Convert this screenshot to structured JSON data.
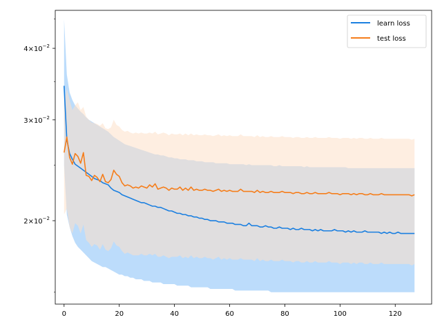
{
  "chart_data": {
    "type": "line",
    "title": "",
    "xlabel": "",
    "ylabel": "",
    "yscale": "log",
    "xlim": [
      -3.2,
      133.2
    ],
    "ylim": [
      0.0143,
      0.0466
    ],
    "grid": false,
    "legend_position": "top-right",
    "x_ticks": [
      0,
      20,
      40,
      60,
      80,
      100,
      120
    ],
    "x_tick_labels": [
      "0",
      "20",
      "40",
      "60",
      "80",
      "100",
      "120"
    ],
    "y_ticks": [
      0.02,
      0.03,
      0.04
    ],
    "y_tick_labels": [
      {
        "base": "2",
        "exp": "−2"
      },
      {
        "base": "3",
        "exp": "−2"
      },
      {
        "base": "4",
        "exp": "−2"
      }
    ],
    "series": [
      {
        "name": "learn loss",
        "color": "#1f77b4",
        "line_color": "#1a7fe0",
        "band_color": "#bcdcfb",
        "x_step": 1,
        "x_start": 0,
        "values": [
          0.0344,
          0.0277,
          0.0262,
          0.0256,
          0.0251,
          0.0249,
          0.0247,
          0.0245,
          0.0243,
          0.0241,
          0.0239,
          0.0237,
          0.0236,
          0.0235,
          0.0233,
          0.0232,
          0.0231,
          0.0228,
          0.0226,
          0.0225,
          0.0224,
          0.0222,
          0.0221,
          0.022,
          0.0219,
          0.0218,
          0.0217,
          0.0216,
          0.0215,
          0.0215,
          0.0214,
          0.0213,
          0.0212,
          0.0212,
          0.0211,
          0.0211,
          0.021,
          0.0209,
          0.0208,
          0.0208,
          0.0207,
          0.0206,
          0.0206,
          0.0205,
          0.0205,
          0.0204,
          0.0204,
          0.0203,
          0.0203,
          0.0202,
          0.0202,
          0.0201,
          0.0201,
          0.02,
          0.02,
          0.02,
          0.0199,
          0.0199,
          0.0199,
          0.0198,
          0.0198,
          0.0198,
          0.0197,
          0.0197,
          0.0197,
          0.0196,
          0.0196,
          0.0198,
          0.0196,
          0.0196,
          0.0196,
          0.0195,
          0.0195,
          0.0196,
          0.0195,
          0.0195,
          0.0194,
          0.0194,
          0.0195,
          0.0194,
          0.0194,
          0.0194,
          0.0193,
          0.0194,
          0.0193,
          0.0193,
          0.0194,
          0.0193,
          0.0193,
          0.0193,
          0.0192,
          0.0193,
          0.0192,
          0.0193,
          0.0192,
          0.0192,
          0.0192,
          0.0192,
          0.0193,
          0.0192,
          0.0192,
          0.0192,
          0.0191,
          0.0192,
          0.0191,
          0.0192,
          0.0191,
          0.0191,
          0.0191,
          0.0192,
          0.0191,
          0.0191,
          0.0191,
          0.0191,
          0.0191,
          0.019,
          0.0191,
          0.019,
          0.0191,
          0.019,
          0.019,
          0.0191,
          0.019,
          0.019,
          0.019,
          0.019,
          0.019,
          0.019
        ],
        "upper": [
          0.045,
          0.036,
          0.0335,
          0.0325,
          0.0318,
          0.0314,
          0.031,
          0.0307,
          0.0303,
          0.03,
          0.0298,
          0.0296,
          0.0294,
          0.0292,
          0.029,
          0.0288,
          0.0286,
          0.0283,
          0.028,
          0.0278,
          0.0276,
          0.0274,
          0.0272,
          0.0271,
          0.027,
          0.0269,
          0.0268,
          0.0267,
          0.0266,
          0.0265,
          0.0264,
          0.0263,
          0.0262,
          0.0261,
          0.0261,
          0.026,
          0.026,
          0.0259,
          0.0258,
          0.0258,
          0.0257,
          0.0257,
          0.0256,
          0.0256,
          0.0256,
          0.0255,
          0.0255,
          0.0255,
          0.0254,
          0.0254,
          0.0254,
          0.0253,
          0.0253,
          0.0253,
          0.0253,
          0.0252,
          0.0252,
          0.0252,
          0.0252,
          0.0252,
          0.0251,
          0.0251,
          0.0251,
          0.0251,
          0.0251,
          0.0251,
          0.025,
          0.0251,
          0.025,
          0.025,
          0.025,
          0.025,
          0.025,
          0.025,
          0.025,
          0.025,
          0.0249,
          0.0249,
          0.025,
          0.0249,
          0.0249,
          0.0249,
          0.0249,
          0.0249,
          0.0249,
          0.0249,
          0.0249,
          0.0248,
          0.0249,
          0.0248,
          0.0248,
          0.0248,
          0.0248,
          0.0248,
          0.0248,
          0.0248,
          0.0248,
          0.0248,
          0.0248,
          0.0248,
          0.0248,
          0.0248,
          0.0248,
          0.0247,
          0.0247,
          0.0247,
          0.0247,
          0.0247,
          0.0247,
          0.0247,
          0.0247,
          0.0247,
          0.0247,
          0.0247,
          0.0247,
          0.0247,
          0.0247,
          0.0247,
          0.0247,
          0.0247,
          0.0247,
          0.0247,
          0.0247,
          0.0247,
          0.0247,
          0.0247,
          0.0247,
          0.0247
        ],
        "lower": [
          0.025,
          0.0205,
          0.0195,
          0.0188,
          0.0183,
          0.018,
          0.0178,
          0.0176,
          0.0174,
          0.0172,
          0.017,
          0.0169,
          0.0168,
          0.0167,
          0.0166,
          0.0166,
          0.0165,
          0.0164,
          0.0163,
          0.0162,
          0.0161,
          0.0161,
          0.016,
          0.016,
          0.0159,
          0.0159,
          0.0158,
          0.0158,
          0.0158,
          0.0157,
          0.0157,
          0.0157,
          0.0156,
          0.0156,
          0.0156,
          0.0156,
          0.0155,
          0.0155,
          0.0155,
          0.0155,
          0.0155,
          0.0154,
          0.0154,
          0.0154,
          0.0154,
          0.0154,
          0.0153,
          0.0153,
          0.0153,
          0.0153,
          0.0153,
          0.0153,
          0.0153,
          0.0152,
          0.0152,
          0.0152,
          0.0152,
          0.0152,
          0.0152,
          0.0152,
          0.0152,
          0.0152,
          0.0151,
          0.0151,
          0.0151,
          0.0151,
          0.0151,
          0.0151,
          0.0151,
          0.0151,
          0.0151,
          0.0151,
          0.0151,
          0.0151,
          0.0151,
          0.015,
          0.015,
          0.015,
          0.015,
          0.015,
          0.015,
          0.015,
          0.015,
          0.015,
          0.015,
          0.015,
          0.015,
          0.015,
          0.015,
          0.015,
          0.015,
          0.015,
          0.015,
          0.015,
          0.015,
          0.015,
          0.015,
          0.015,
          0.015,
          0.015,
          0.015,
          0.015,
          0.015,
          0.015,
          0.015,
          0.015,
          0.015,
          0.015,
          0.015,
          0.015,
          0.015,
          0.015,
          0.015,
          0.015,
          0.015,
          0.015,
          0.015,
          0.015,
          0.015,
          0.015,
          0.015,
          0.015,
          0.015,
          0.015,
          0.015,
          0.015,
          0.015,
          0.015
        ]
      },
      {
        "name": "test loss",
        "color": "#ff7f0e",
        "line_color": "#f57d1a",
        "band_color": "#fde0c8",
        "x_step": 1,
        "x_start": 0,
        "values": [
          0.0263,
          0.028,
          0.0258,
          0.0251,
          0.0262,
          0.0259,
          0.0252,
          0.0263,
          0.024,
          0.0239,
          0.0235,
          0.024,
          0.0238,
          0.0234,
          0.0241,
          0.0234,
          0.0233,
          0.0236,
          0.0245,
          0.0241,
          0.0239,
          0.0233,
          0.023,
          0.0231,
          0.023,
          0.0228,
          0.0229,
          0.0228,
          0.023,
          0.0229,
          0.0228,
          0.0231,
          0.0229,
          0.0232,
          0.0227,
          0.0228,
          0.0229,
          0.0228,
          0.0226,
          0.0228,
          0.0227,
          0.0227,
          0.0229,
          0.0226,
          0.0228,
          0.0226,
          0.0229,
          0.0226,
          0.0227,
          0.0226,
          0.0226,
          0.0227,
          0.0226,
          0.0226,
          0.0225,
          0.0226,
          0.0227,
          0.0225,
          0.0226,
          0.0225,
          0.0226,
          0.0225,
          0.0225,
          0.0225,
          0.0227,
          0.0225,
          0.0225,
          0.0225,
          0.0225,
          0.0224,
          0.0226,
          0.0224,
          0.0225,
          0.0224,
          0.0224,
          0.0225,
          0.0224,
          0.0224,
          0.0224,
          0.0225,
          0.0224,
          0.0224,
          0.0224,
          0.0223,
          0.0224,
          0.0224,
          0.0223,
          0.0223,
          0.0224,
          0.0223,
          0.0223,
          0.0224,
          0.0223,
          0.0223,
          0.0223,
          0.0223,
          0.0224,
          0.0223,
          0.0223,
          0.0223,
          0.0222,
          0.0223,
          0.0223,
          0.0223,
          0.0222,
          0.0223,
          0.0222,
          0.0223,
          0.0223,
          0.0222,
          0.0222,
          0.0223,
          0.0222,
          0.0222,
          0.0222,
          0.0223,
          0.0222,
          0.0222,
          0.0222,
          0.0222,
          0.0222,
          0.0222,
          0.0222,
          0.0222,
          0.0222,
          0.0222,
          0.0221,
          0.0222
        ],
        "upper": [
          0.032,
          0.034,
          0.0325,
          0.0312,
          0.0318,
          0.0322,
          0.0312,
          0.0316,
          0.0304,
          0.03,
          0.0297,
          0.0296,
          0.0295,
          0.0293,
          0.0296,
          0.029,
          0.0289,
          0.0291,
          0.03,
          0.0294,
          0.0292,
          0.0288,
          0.0286,
          0.0287,
          0.0285,
          0.0284,
          0.0285,
          0.0284,
          0.0285,
          0.0284,
          0.0284,
          0.0285,
          0.0284,
          0.0286,
          0.0283,
          0.0284,
          0.0285,
          0.0284,
          0.0282,
          0.0284,
          0.0283,
          0.0283,
          0.0284,
          0.0282,
          0.0284,
          0.0282,
          0.0284,
          0.0282,
          0.0283,
          0.0282,
          0.0282,
          0.0283,
          0.0282,
          0.0282,
          0.0281,
          0.0282,
          0.0283,
          0.0281,
          0.0282,
          0.0281,
          0.0282,
          0.0281,
          0.0281,
          0.0281,
          0.0283,
          0.0281,
          0.0281,
          0.0281,
          0.0281,
          0.028,
          0.0282,
          0.028,
          0.0281,
          0.028,
          0.028,
          0.0281,
          0.028,
          0.028,
          0.028,
          0.0281,
          0.028,
          0.028,
          0.028,
          0.0279,
          0.028,
          0.028,
          0.0279,
          0.0279,
          0.028,
          0.0279,
          0.0279,
          0.028,
          0.0279,
          0.0279,
          0.0279,
          0.0279,
          0.028,
          0.0279,
          0.0279,
          0.0279,
          0.0278,
          0.0279,
          0.0279,
          0.0279,
          0.0278,
          0.0279,
          0.0278,
          0.0279,
          0.0279,
          0.0278,
          0.0278,
          0.0279,
          0.0278,
          0.0278,
          0.0278,
          0.0279,
          0.0278,
          0.0278,
          0.0278,
          0.0278,
          0.0278,
          0.0278,
          0.0278,
          0.0278,
          0.0278,
          0.0278,
          0.0277,
          0.0278
        ],
        "lower": [
          0.0205,
          0.021,
          0.0195,
          0.019,
          0.0198,
          0.0196,
          0.019,
          0.0197,
          0.0185,
          0.0183,
          0.018,
          0.0182,
          0.0181,
          0.0178,
          0.0182,
          0.0178,
          0.0177,
          0.0179,
          0.0184,
          0.0181,
          0.018,
          0.0177,
          0.0175,
          0.0176,
          0.0175,
          0.0174,
          0.0174,
          0.0174,
          0.0175,
          0.0174,
          0.0174,
          0.0175,
          0.0174,
          0.0175,
          0.0173,
          0.0173,
          0.0174,
          0.0173,
          0.0172,
          0.0173,
          0.0173,
          0.0173,
          0.0174,
          0.0172,
          0.0173,
          0.0172,
          0.0174,
          0.0172,
          0.0173,
          0.0172,
          0.0172,
          0.0173,
          0.0172,
          0.0172,
          0.0171,
          0.0172,
          0.0173,
          0.0171,
          0.0172,
          0.0171,
          0.0172,
          0.0171,
          0.0171,
          0.0171,
          0.0172,
          0.0171,
          0.0171,
          0.0171,
          0.0171,
          0.017,
          0.0172,
          0.017,
          0.0171,
          0.017,
          0.017,
          0.0171,
          0.017,
          0.017,
          0.017,
          0.0171,
          0.017,
          0.017,
          0.017,
          0.0169,
          0.017,
          0.017,
          0.0169,
          0.0169,
          0.017,
          0.0169,
          0.0169,
          0.017,
          0.0169,
          0.0169,
          0.0169,
          0.0169,
          0.017,
          0.0169,
          0.0169,
          0.0169,
          0.0168,
          0.0169,
          0.0169,
          0.0169,
          0.0168,
          0.0169,
          0.0168,
          0.0169,
          0.0169,
          0.0168,
          0.0168,
          0.0169,
          0.0168,
          0.0168,
          0.0168,
          0.0169,
          0.0168,
          0.0168,
          0.0168,
          0.0168,
          0.0168,
          0.0168,
          0.0168,
          0.0168,
          0.0168,
          0.0168,
          0.0167,
          0.0168
        ]
      }
    ]
  }
}
